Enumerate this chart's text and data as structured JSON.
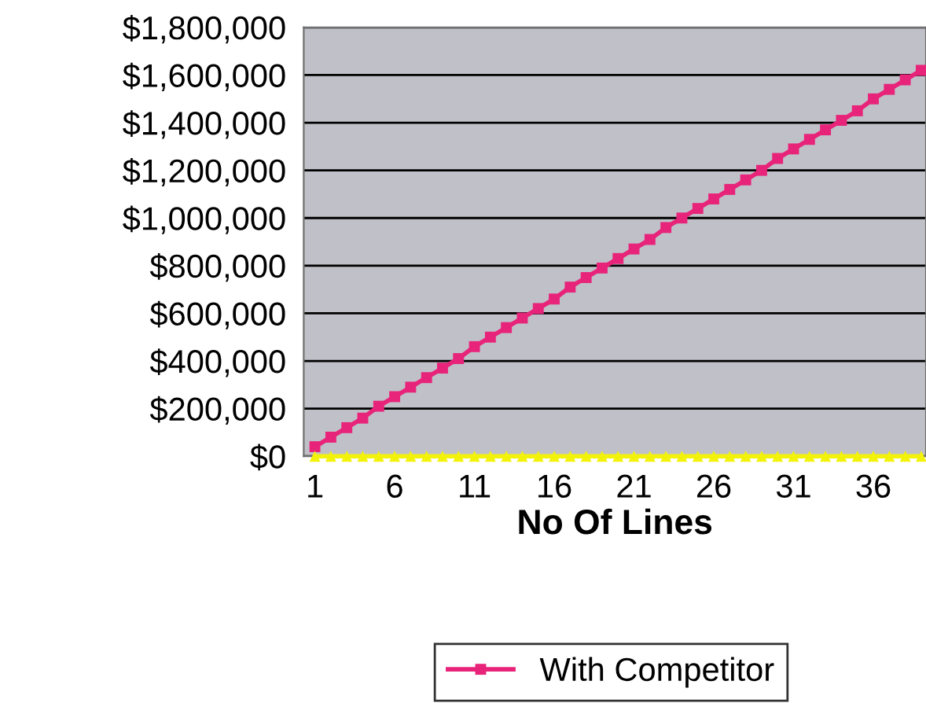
{
  "chart_data": {
    "type": "line",
    "xlabel": "No Of Lines",
    "x": [
      1,
      2,
      3,
      4,
      5,
      6,
      7,
      8,
      9,
      10,
      11,
      12,
      13,
      14,
      15,
      16,
      17,
      18,
      19,
      20,
      21,
      22,
      23,
      24,
      25,
      26,
      27,
      28,
      29,
      30,
      31,
      32,
      33,
      34,
      35,
      36,
      37,
      38,
      39
    ],
    "series": [
      {
        "name": "With Competitor",
        "color": "#e8237a",
        "marker": "square",
        "values": [
          40000,
          80000,
          120000,
          160000,
          210000,
          250000,
          290000,
          330000,
          370000,
          410000,
          460000,
          500000,
          540000,
          580000,
          620000,
          660000,
          710000,
          750000,
          790000,
          830000,
          870000,
          910000,
          960000,
          1000000,
          1040000,
          1080000,
          1120000,
          1160000,
          1200000,
          1250000,
          1290000,
          1330000,
          1370000,
          1410000,
          1450000,
          1500000,
          1540000,
          1580000,
          1620000
        ]
      },
      {
        "color": "#f2f20a",
        "marker": "triangle",
        "values": [
          0,
          0,
          0,
          0,
          0,
          0,
          0,
          0,
          0,
          0,
          0,
          0,
          0,
          0,
          0,
          0,
          0,
          0,
          0,
          0,
          0,
          0,
          0,
          0,
          0,
          0,
          0,
          0,
          0,
          0,
          0,
          0,
          0,
          0,
          0,
          0,
          0,
          0,
          0
        ]
      }
    ],
    "xlim": [
      0.3,
      39.3
    ],
    "xticks": [
      1,
      6,
      11,
      16,
      21,
      26,
      31,
      36
    ],
    "ylim": [
      0,
      1800000
    ],
    "yticks": [
      {
        "value": 0,
        "label": "$0"
      },
      {
        "value": 200000,
        "label": "$200,000"
      },
      {
        "value": 400000,
        "label": "$400,000"
      },
      {
        "value": 600000,
        "label": "$600,000"
      },
      {
        "value": 800000,
        "label": "$800,000"
      },
      {
        "value": 1000000,
        "label": "$1,000,000"
      },
      {
        "value": 1200000,
        "label": "$1,200,000"
      },
      {
        "value": 1400000,
        "label": "$1,400,000"
      },
      {
        "value": 1600000,
        "label": "$1,600,000"
      },
      {
        "value": 1800000,
        "label": "$1,800,000"
      }
    ],
    "grid": "y",
    "legend": "bottom"
  }
}
